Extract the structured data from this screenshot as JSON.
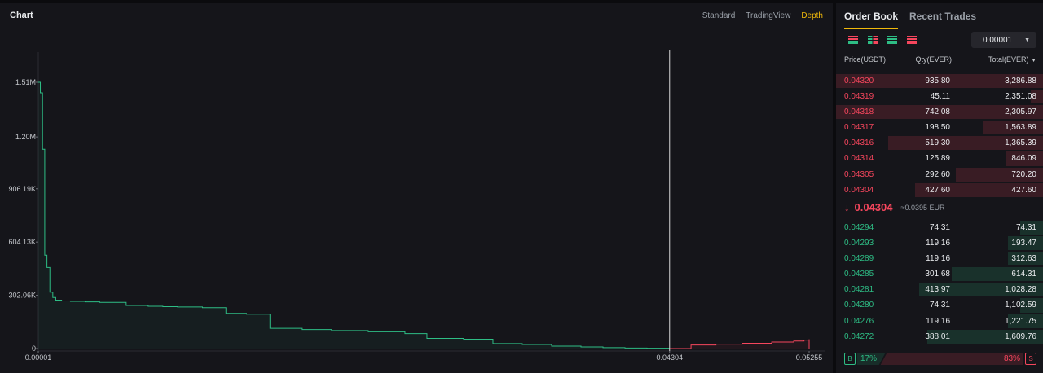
{
  "chart": {
    "title": "Chart",
    "tabs": [
      {
        "label": "Standard",
        "active": false
      },
      {
        "label": "TradingView",
        "active": false
      },
      {
        "label": "Depth",
        "active": true
      }
    ]
  },
  "chart_data": {
    "type": "area",
    "x_ticks": [
      "0.00001",
      "0.04304",
      "0.05255"
    ],
    "y_ticks": [
      "0",
      "302.06K",
      "604.13K",
      "906.19K",
      "1.20M",
      "1.51M"
    ],
    "xlim": [
      1e-05,
      0.05255
    ],
    "ylim": [
      0,
      1510000
    ],
    "mid_price": 0.04304,
    "series": [
      {
        "side": "bid",
        "color": "#2ebd85",
        "x": [
          1e-05,
          0.00015,
          0.0003,
          0.00045,
          0.0006,
          0.0008,
          0.001,
          0.0012,
          0.0016,
          0.0022,
          0.0032,
          0.0042,
          0.006,
          0.0075,
          0.0085,
          0.0095,
          0.0112,
          0.0128,
          0.0142,
          0.0158,
          0.018,
          0.02,
          0.0225,
          0.025,
          0.0265,
          0.029,
          0.031,
          0.033,
          0.035,
          0.037,
          0.0385,
          0.04,
          0.0415,
          0.043
        ],
        "y": [
          1510000,
          1450000,
          1130000,
          530000,
          460000,
          320000,
          290000,
          275000,
          270000,
          268000,
          265000,
          262000,
          245000,
          240000,
          238000,
          236000,
          232000,
          200000,
          195000,
          115000,
          108000,
          102000,
          95000,
          85000,
          58000,
          53000,
          28000,
          23000,
          14000,
          9000,
          5000,
          3000,
          1500,
          0
        ]
      },
      {
        "side": "ask",
        "color": "#f6465d",
        "x": [
          0.04304,
          0.0445,
          0.0462,
          0.048,
          0.05,
          0.0515,
          0.0522,
          0.05255
        ],
        "y": [
          0,
          20000,
          25000,
          30000,
          37000,
          43000,
          48000,
          52000
        ]
      }
    ]
  },
  "orderbook": {
    "tabs": [
      {
        "label": "Order Book",
        "active": true
      },
      {
        "label": "Recent Trades",
        "active": false
      }
    ],
    "precision": "0.00001",
    "headers": {
      "price": "Price(USDT)",
      "qty": "Qty(EVER)",
      "total": "Total(EVER)"
    },
    "asks": [
      {
        "price": "0.04320",
        "qty": "935.80",
        "total": "3,286.88",
        "depth": 1.0
      },
      {
        "price": "0.04319",
        "qty": "45.11",
        "total": "2,351.08",
        "depth": 0.06
      },
      {
        "price": "0.04318",
        "qty": "742.08",
        "total": "2,305.97",
        "depth": 1.0
      },
      {
        "price": "0.04317",
        "qty": "198.50",
        "total": "1,563.89",
        "depth": 0.29
      },
      {
        "price": "0.04316",
        "qty": "519.30",
        "total": "1,365.39",
        "depth": 0.75
      },
      {
        "price": "0.04314",
        "qty": "125.89",
        "total": "846.09",
        "depth": 0.18
      },
      {
        "price": "0.04305",
        "qty": "292.60",
        "total": "720.20",
        "depth": 0.42
      },
      {
        "price": "0.04304",
        "qty": "427.60",
        "total": "427.60",
        "depth": 0.62
      }
    ],
    "last_price": "0.04304",
    "last_price_fiat": "≈0.0395 EUR",
    "bids": [
      {
        "price": "0.04294",
        "qty": "74.31",
        "total": "74.31",
        "depth": 0.11
      },
      {
        "price": "0.04293",
        "qty": "119.16",
        "total": "193.47",
        "depth": 0.17
      },
      {
        "price": "0.04289",
        "qty": "119.16",
        "total": "312.63",
        "depth": 0.17
      },
      {
        "price": "0.04285",
        "qty": "301.68",
        "total": "614.31",
        "depth": 0.44
      },
      {
        "price": "0.04281",
        "qty": "413.97",
        "total": "1,028.28",
        "depth": 0.6
      },
      {
        "price": "0.04280",
        "qty": "74.31",
        "total": "1,102.59",
        "depth": 0.11
      },
      {
        "price": "0.04276",
        "qty": "119.16",
        "total": "1,221.75",
        "depth": 0.17
      },
      {
        "price": "0.04272",
        "qty": "388.01",
        "total": "1,609.76",
        "depth": 0.56
      }
    ],
    "ratio": {
      "buy_label": "B",
      "buy_pct": "17%",
      "buy_value": 17,
      "sell_label": "S",
      "sell_pct": "83%",
      "sell_value": 83
    }
  }
}
